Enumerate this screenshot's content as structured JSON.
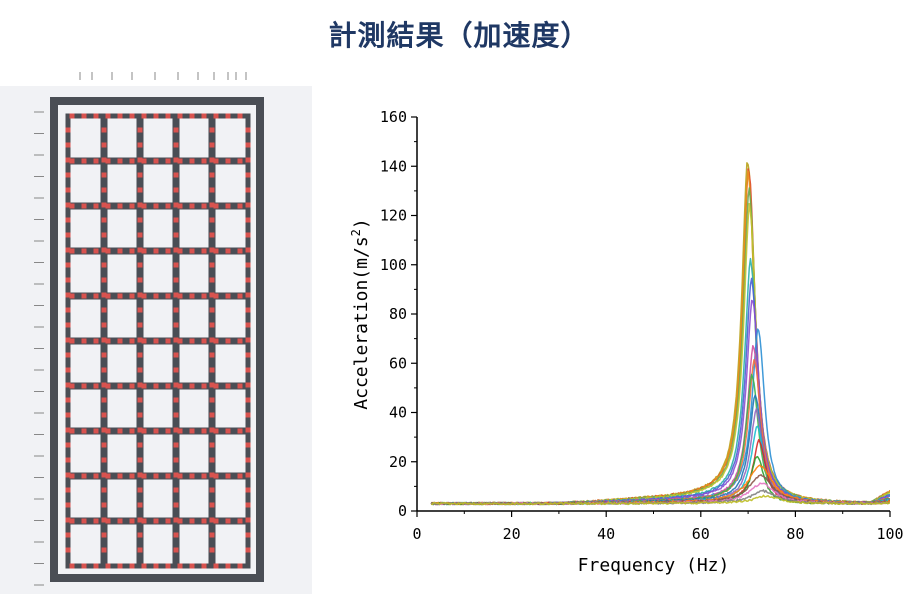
{
  "page": {
    "title": "計測結果（加速度）"
  },
  "colors": {
    "title": "#1f3864",
    "frame": "#4a4e55",
    "sensor": "#d9534f",
    "model_bg": "#e8eaef"
  },
  "model": {
    "rows": 10,
    "cols": 5
  },
  "chart_data": {
    "type": "line",
    "title": "",
    "xlabel": "Frequency (Hz)",
    "ylabel_base": "Acceleration(m/s",
    "ylabel_sup": "2",
    "ylabel_end": ")",
    "xlim": [
      0,
      100
    ],
    "ylim": [
      0,
      160
    ],
    "xticks": [
      0,
      20,
      40,
      60,
      80,
      100
    ],
    "yticks": [
      0,
      20,
      40,
      60,
      80,
      100,
      120,
      140,
      160
    ],
    "xtick_labels": [
      "0",
      "20",
      "40",
      "60",
      "80",
      "100"
    ],
    "ytick_labels": [
      "0",
      "20",
      "40",
      "60",
      "80",
      "100",
      "120",
      "140",
      "160"
    ],
    "x_start": 3,
    "x_end": 100,
    "baseline": 3,
    "series": [
      {
        "color": "#b8a21a",
        "peak": 141,
        "fpeak": 70.0
      },
      {
        "color": "#e0462c",
        "peak": 137,
        "fpeak": 70.2
      },
      {
        "color": "#e8921c",
        "peak": 135,
        "fpeak": 70.1
      },
      {
        "color": "#6aa84f",
        "peak": 128,
        "fpeak": 70.3
      },
      {
        "color": "#c0c32c",
        "peak": 122,
        "fpeak": 70.4
      },
      {
        "color": "#2ab0a8",
        "peak": 100,
        "fpeak": 70.6
      },
      {
        "color": "#4a5fd4",
        "peak": 92,
        "fpeak": 70.8
      },
      {
        "color": "#8c4fd0",
        "peak": 85,
        "fpeak": 71.0
      },
      {
        "color": "#2b8fd4",
        "peak": 73,
        "fpeak": 72.2
      },
      {
        "color": "#d04fa0",
        "peak": 66,
        "fpeak": 71.2
      },
      {
        "color": "#f07040",
        "peak": 60,
        "fpeak": 71.4
      },
      {
        "color": "#3cb44b",
        "peak": 54,
        "fpeak": 70.9
      },
      {
        "color": "#1f77b4",
        "peak": 46,
        "fpeak": 71.6
      },
      {
        "color": "#9467bd",
        "peak": 40,
        "fpeak": 71.8
      },
      {
        "color": "#17becf",
        "peak": 34,
        "fpeak": 72.0
      },
      {
        "color": "#d62728",
        "peak": 28,
        "fpeak": 72.4
      },
      {
        "color": "#2ca02c",
        "peak": 22,
        "fpeak": 72.0
      },
      {
        "color": "#ff7f0e",
        "peak": 18,
        "fpeak": 72.6
      },
      {
        "color": "#8c564b",
        "peak": 14,
        "fpeak": 72.8
      },
      {
        "color": "#e377c2",
        "peak": 11,
        "fpeak": 73.0
      },
      {
        "color": "#7f7f7f",
        "peak": 8,
        "fpeak": 73.4
      },
      {
        "color": "#bcbd22",
        "peak": 6,
        "fpeak": 74.0
      }
    ]
  }
}
